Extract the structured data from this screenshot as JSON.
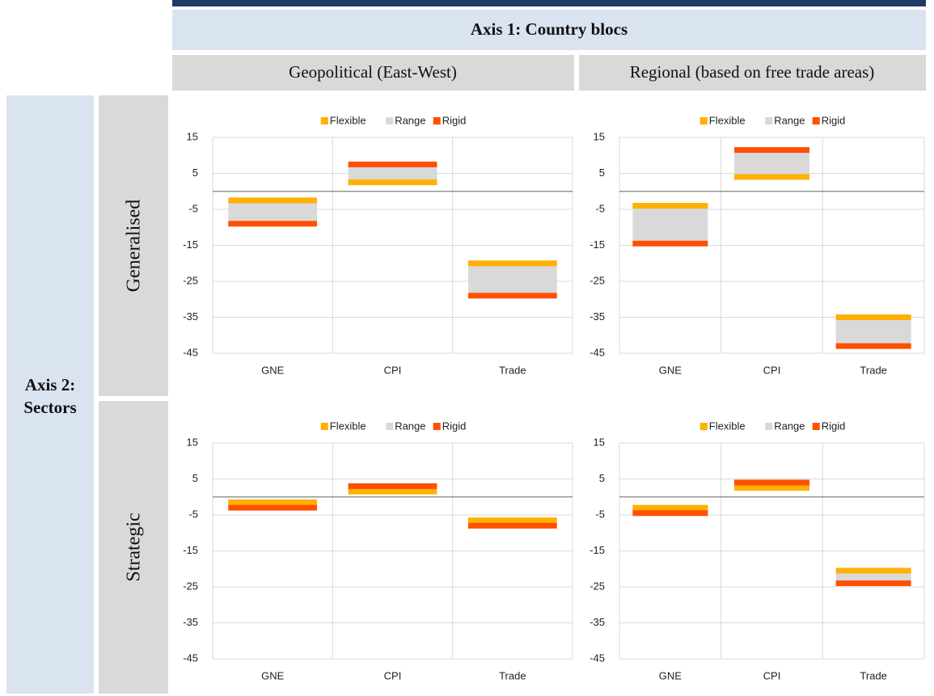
{
  "header": {
    "title": "Axis 1: Country blocs",
    "columns": [
      "Geopolitical (East-West)",
      "Regional (based on free trade areas)"
    ],
    "row_axis": [
      "Axis 2:",
      "Sectors"
    ],
    "rows": [
      "Generalised",
      "Strategic"
    ]
  },
  "chart_data": [
    {
      "type": "range",
      "categories": [
        "GNE",
        "CPI",
        "Trade"
      ],
      "ylim": [
        -45,
        15
      ],
      "yticks": [
        15,
        5,
        -5,
        -15,
        -25,
        -35,
        -45
      ],
      "grid": true,
      "legend": "top",
      "series": [
        {
          "name": "Flexible",
          "color": "#ffb000",
          "values": [
            -2.5,
            2.5,
            -20
          ]
        },
        {
          "name": "Range",
          "color": "#d9d9d9"
        },
        {
          "name": "Rigid",
          "color": "#ff4f00",
          "values": [
            -9,
            7.5,
            -29
          ]
        }
      ]
    },
    {
      "type": "range",
      "categories": [
        "GNE",
        "CPI",
        "Trade"
      ],
      "ylim": [
        -45,
        15
      ],
      "yticks": [
        15,
        5,
        -5,
        -15,
        -25,
        -35,
        -45
      ],
      "grid": true,
      "legend": "top",
      "series": [
        {
          "name": "Flexible",
          "color": "#ffb000",
          "values": [
            -4,
            4,
            -35
          ]
        },
        {
          "name": "Range",
          "color": "#d9d9d9"
        },
        {
          "name": "Rigid",
          "color": "#ff4f00",
          "values": [
            -14.5,
            11.5,
            -43
          ]
        }
      ]
    },
    {
      "type": "range",
      "categories": [
        "GNE",
        "CPI",
        "Trade"
      ],
      "ylim": [
        -45,
        15
      ],
      "yticks": [
        15,
        5,
        -5,
        -15,
        -25,
        -35,
        -45
      ],
      "grid": true,
      "legend": "top",
      "series": [
        {
          "name": "Flexible",
          "color": "#ffb000",
          "values": [
            -1.5,
            1.5,
            -6.5
          ]
        },
        {
          "name": "Range",
          "color": "#d9d9d9"
        },
        {
          "name": "Rigid",
          "color": "#ff4f00",
          "values": [
            -3,
            3,
            -8
          ]
        }
      ]
    },
    {
      "type": "range",
      "categories": [
        "GNE",
        "CPI",
        "Trade"
      ],
      "ylim": [
        -45,
        15
      ],
      "yticks": [
        15,
        5,
        -5,
        -15,
        -25,
        -35,
        -45
      ],
      "grid": true,
      "legend": "top",
      "series": [
        {
          "name": "Flexible",
          "color": "#ffb000",
          "values": [
            -3,
            2.5,
            -20.5
          ]
        },
        {
          "name": "Range",
          "color": "#d9d9d9"
        },
        {
          "name": "Rigid",
          "color": "#ff4f00",
          "values": [
            -4.5,
            4,
            -24
          ]
        }
      ]
    }
  ]
}
